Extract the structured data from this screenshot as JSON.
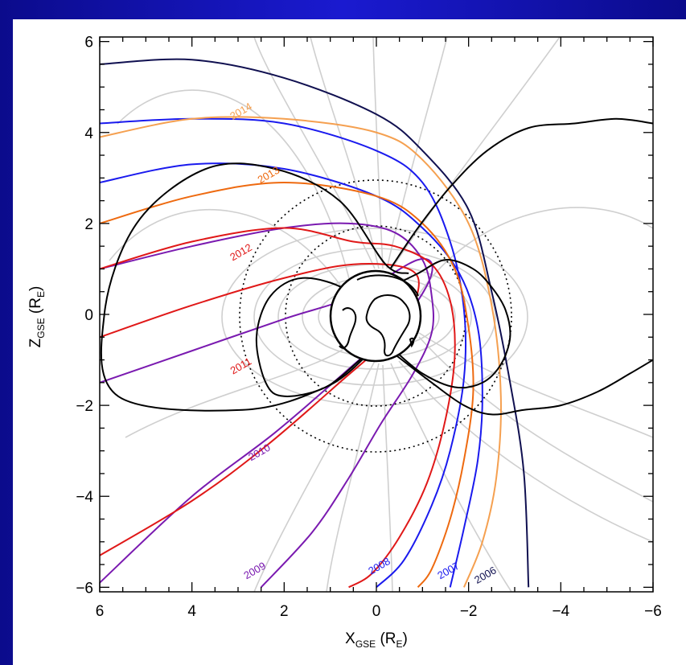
{
  "chart_data": {
    "type": "line",
    "title": "",
    "xlabel": {
      "main": "X",
      "sub": "GSE",
      "unit_open": " (R",
      "unit_sub": "E",
      "unit_close": ")"
    },
    "ylabel": {
      "main": "Z",
      "sub": "GSE",
      "unit_open": " (R",
      "unit_sub": "E",
      "unit_close": ")"
    },
    "xlim": [
      6,
      -6
    ],
    "ylim": [
      -6.1,
      6.1
    ],
    "x_reversed": true,
    "xticks": [
      6,
      4,
      2,
      0,
      -2,
      -4,
      -6
    ],
    "yticks": [
      6,
      4,
      2,
      0,
      -2,
      -4,
      -6
    ],
    "xtick_labels": [
      "6",
      "4",
      "2",
      "0",
      "−2",
      "−4",
      "−6"
    ],
    "ytick_labels": [
      "6",
      "4",
      "2",
      "0",
      "−2",
      "−4",
      "−6"
    ],
    "grid": false,
    "dotted_circles_radius_RE": [
      2,
      3
    ],
    "earth_radius_RE": 1,
    "series": [
      {
        "name": "2006",
        "color": "#101050",
        "x": [
          6,
          4,
          2,
          0,
          -1,
          -2,
          -2.5,
          -2.9,
          -3.2,
          -3.3
        ],
        "y": [
          5.5,
          5.6,
          5.2,
          4.4,
          3.6,
          2.3,
          0.5,
          -1.5,
          -3.5,
          -6.0
        ],
        "label_at": [
          -2.4,
          -5.8
        ]
      },
      {
        "name": "2007",
        "color": "#1a1aee",
        "x": [
          6,
          4,
          2,
          0,
          -1,
          -1.8,
          -2.2,
          -2.3,
          -2.2,
          -1.9,
          -1.6
        ],
        "y": [
          2.9,
          3.3,
          3.2,
          2.6,
          1.9,
          0.9,
          -0.3,
          -1.8,
          -3.2,
          -4.7,
          -6.0
        ],
        "label_at": [
          -1.6,
          -5.7
        ]
      },
      {
        "name": "2008",
        "color": "#1a1aee",
        "x": [
          6,
          4,
          2,
          0,
          -1,
          -1.6,
          -1.9,
          -1.9,
          -1.6,
          -1.2,
          -0.6,
          0
        ],
        "y": [
          4.2,
          4.3,
          4.2,
          3.6,
          2.9,
          1.6,
          0.1,
          -1.4,
          -3.0,
          -4.2,
          -5.4,
          -6.0
        ],
        "label_at": [
          -0.1,
          -5.6
        ]
      },
      {
        "name": "2009",
        "color": "#7a1ab0",
        "x": [
          6,
          4,
          2,
          0.6,
          -0.4,
          -1,
          -1.2,
          -1.2,
          -0.8,
          -0.1,
          0.6,
          1.4,
          2.5
        ],
        "y": [
          1.0,
          1.5,
          1.9,
          2.0,
          1.8,
          1.2,
          0.4,
          -0.4,
          -1.3,
          -2.4,
          -3.6,
          -4.8,
          -6.0
        ],
        "label_at": [
          2.6,
          -5.7
        ]
      },
      {
        "name": "2010",
        "color": "#7a1ab0",
        "x": [
          6,
          4,
          2,
          0.5,
          -0.9,
          -1.2,
          -0.6,
          0.6,
          2.2,
          4,
          6
        ],
        "y": [
          -1.5,
          -0.8,
          -0.1,
          0.4,
          1.2,
          0.9,
          -0.1,
          -1.2,
          -2.6,
          -4.0,
          -5.9
        ],
        "label_at": [
          2.5,
          -3.1
        ]
      },
      {
        "name": "2011",
        "color": "#e01818",
        "x": [
          6,
          4,
          2,
          0.5,
          -0.7,
          -0.9,
          -0.4,
          0.8,
          2.4,
          4,
          6
        ],
        "y": [
          -0.5,
          0.2,
          0.8,
          1.1,
          1.0,
          0.5,
          -0.4,
          -1.5,
          -2.9,
          -4.1,
          -5.3
        ],
        "label_at": [
          2.9,
          -1.2
        ]
      },
      {
        "name": "2012",
        "color": "#e01818",
        "x": [
          6,
          4,
          2,
          0.5,
          -0.4,
          -1.2,
          -1.6,
          -1.7,
          -1.5,
          -1.1,
          -0.5,
          0.1,
          0.6
        ],
        "y": [
          1.0,
          1.6,
          1.9,
          1.6,
          1.5,
          1.1,
          0.3,
          -0.9,
          -2.3,
          -3.7,
          -4.9,
          -5.7,
          -6.0
        ],
        "label_at": [
          2.9,
          1.3
        ]
      },
      {
        "name": "2013",
        "color": "#ee6a10",
        "x": [
          6,
          4,
          2,
          0,
          -1,
          -1.7,
          -2.0,
          -2.1,
          -1.9,
          -1.6,
          -1.2,
          -0.9
        ],
        "y": [
          2.0,
          2.6,
          2.9,
          2.6,
          2.0,
          1.0,
          -0.3,
          -1.7,
          -3.2,
          -4.5,
          -5.6,
          -6.0
        ],
        "label_at": [
          2.3,
          3.0
        ]
      },
      {
        "name": "2014",
        "color": "#f5a050",
        "x": [
          6,
          4,
          2,
          0,
          -1,
          -2,
          -2.5,
          -2.7,
          -2.6,
          -2.3,
          -1.9
        ],
        "y": [
          3.9,
          4.3,
          4.3,
          4.0,
          3.4,
          2.0,
          0.2,
          -1.8,
          -3.6,
          -5.0,
          -6.0
        ],
        "label_at": [
          2.9,
          4.4
        ]
      },
      {
        "name": "",
        "color": "#000000",
        "x": [
          0.3,
          1.1,
          2,
          2.4,
          2.6,
          2.3,
          1.6,
          0.6,
          0.1
        ],
        "y": [
          -0.95,
          -1.6,
          -1.8,
          -1.5,
          -0.5,
          0.4,
          0.8,
          0.5,
          -0.3
        ]
      },
      {
        "name": "",
        "color": "#000000",
        "x": [
          0.2,
          1.1,
          2.9,
          5.6,
          5.9,
          5.2,
          3.7,
          2.2,
          0.8,
          -0.2,
          -0.7
        ],
        "y": [
          -0.9,
          -1.6,
          -2.1,
          -1.8,
          0.0,
          2.0,
          3.2,
          3.2,
          2.5,
          1.1,
          0.9
        ]
      },
      {
        "name": "",
        "color": "#000000",
        "x": [
          -0.4,
          -1.0,
          -1.7,
          -2.3,
          -2.7,
          -2.9,
          -2.8,
          -2.5,
          -2.1,
          -1.5,
          -0.9,
          -0.5
        ],
        "y": [
          -0.8,
          -1.3,
          -1.6,
          -1.5,
          -1.1,
          -0.5,
          0.1,
          0.6,
          1.0,
          1.2,
          0.9,
          0.7
        ]
      },
      {
        "name": "",
        "color": "#000000",
        "x": [
          -0.3,
          -0.9,
          -1.6,
          -2.4,
          -3.3,
          -4.3,
          -5.2,
          -6.0
        ],
        "y": [
          1.0,
          1.9,
          2.8,
          3.6,
          4.1,
          4.2,
          4.3,
          4.2
        ]
      },
      {
        "name": "",
        "color": "#000000",
        "x": [
          -0.3,
          -1.2,
          -1.9,
          -2.5,
          -3.2,
          -4.0,
          -4.8,
          -5.5,
          -6.0
        ],
        "y": [
          -0.8,
          -1.5,
          -2.0,
          -2.2,
          -2.1,
          -2.0,
          -1.7,
          -1.3,
          -1.0
        ]
      }
    ]
  }
}
